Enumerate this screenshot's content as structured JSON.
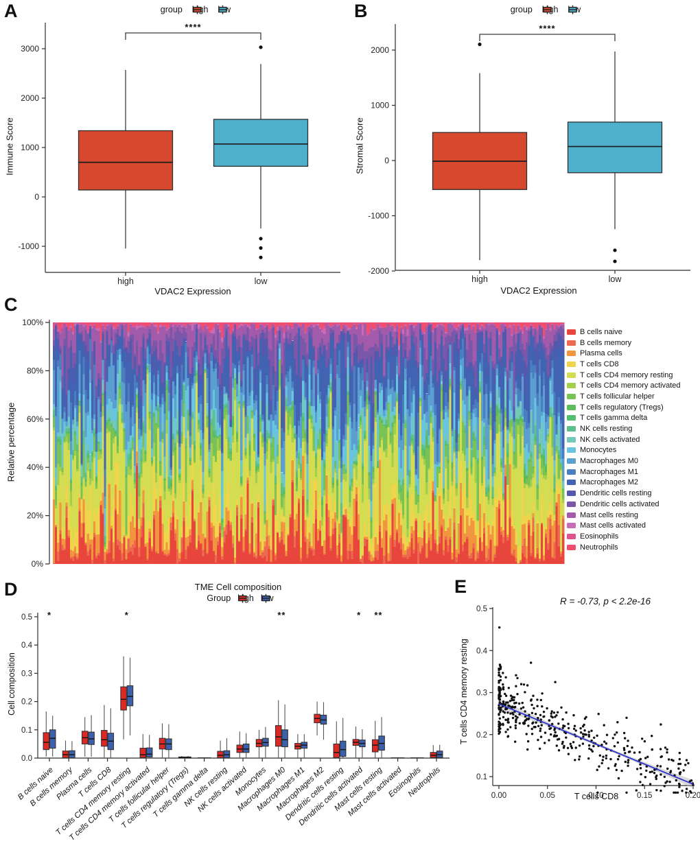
{
  "figure": {
    "background": "#FFFFFF"
  },
  "chart_data": [
    {
      "panel_label": "A",
      "type": "boxplot",
      "legend": {
        "title": "group",
        "items": [
          {
            "label": "high",
            "color": "#D7492F"
          },
          {
            "label": "low",
            "color": "#4FB0CC"
          }
        ]
      },
      "significance": "****",
      "ylabel": "Immune Score",
      "xlabel": "VDAC2 Expression",
      "categories": [
        "high",
        "low"
      ],
      "yticks": [
        {
          "v": -1000,
          "label": "-1000"
        },
        {
          "v": 0,
          "label": "0"
        },
        {
          "v": 1000,
          "label": "1000"
        },
        {
          "v": 2000,
          "label": "2000"
        },
        {
          "v": 3000,
          "label": "3000"
        }
      ],
      "ylim": [
        -1530,
        3530
      ],
      "boxes": [
        {
          "group": "high",
          "color": "#D7492F",
          "min": -1045,
          "q1": 140,
          "median": 700,
          "q3": 1340,
          "max": 2570,
          "outliers": []
        },
        {
          "group": "low",
          "color": "#4FB0CC",
          "min": -640,
          "q1": 620,
          "median": 1070,
          "q3": 1570,
          "max": 2690,
          "outliers": [
            3030,
            -845,
            -1035,
            -1225
          ]
        }
      ]
    },
    {
      "panel_label": "B",
      "type": "boxplot",
      "legend": {
        "title": "group",
        "items": [
          {
            "label": "high",
            "color": "#D7492F"
          },
          {
            "label": "low",
            "color": "#4FB0CC"
          }
        ]
      },
      "significance": "****",
      "ylabel": "Stromal Score",
      "xlabel": "VDAC2 Expression",
      "categories": [
        "high",
        "low"
      ],
      "yticks": [
        {
          "v": -2000,
          "label": "-2000"
        },
        {
          "v": -1000,
          "label": "-1000"
        },
        {
          "v": 0,
          "label": "0"
        },
        {
          "v": 1000,
          "label": "1000"
        },
        {
          "v": 2000,
          "label": "2000"
        }
      ],
      "ylim": [
        -2050,
        2500
      ],
      "boxes": [
        {
          "group": "high",
          "color": "#D7492F",
          "min": -1804,
          "q1": -525,
          "median": -12,
          "q3": 508,
          "max": 1583,
          "outliers": [
            2104
          ]
        },
        {
          "group": "low",
          "color": "#4FB0CC",
          "min": -1242,
          "q1": -221,
          "median": 254,
          "q3": 696,
          "max": 1975,
          "outliers": [
            -1625,
            -1825
          ]
        }
      ]
    },
    {
      "panel_label": "C",
      "type": "stacked-bar",
      "ylabel": "Relative percentage",
      "yticks": [
        "0%",
        "20%",
        "40%",
        "60%",
        "80%",
        "100%"
      ],
      "n_samples": 240,
      "seed": 7,
      "series": [
        {
          "name": "B cells naive",
          "color": "#E8453C",
          "mean_fraction": 0.085
        },
        {
          "name": "B cells memory",
          "color": "#ED6A50",
          "mean_fraction": 0.018
        },
        {
          "name": "Plasma cells",
          "color": "#F2953F",
          "mean_fraction": 0.055
        },
        {
          "name": "T cells CD8",
          "color": "#F0D44C",
          "mean_fraction": 0.06
        },
        {
          "name": "T cells CD4 memory resting",
          "color": "#D4DC52",
          "mean_fraction": 0.2
        },
        {
          "name": "T cells CD4 memory activated",
          "color": "#A2CF4E",
          "mean_fraction": 0.02
        },
        {
          "name": "T cells follicular helper",
          "color": "#79C356",
          "mean_fraction": 0.05
        },
        {
          "name": "T cells regulatory (Tregs)",
          "color": "#5CBC5C",
          "mean_fraction": 0.006
        },
        {
          "name": "T cells gamma delta",
          "color": "#55BD70",
          "mean_fraction": 0.004
        },
        {
          "name": "NK cells resting",
          "color": "#5DBF8D",
          "mean_fraction": 0.015
        },
        {
          "name": "NK cells activated",
          "color": "#72C9B8",
          "mean_fraction": 0.032
        },
        {
          "name": "Monocytes",
          "color": "#69C4DF",
          "mean_fraction": 0.05
        },
        {
          "name": "Macrophages M0",
          "color": "#5B9FD1",
          "mean_fraction": 0.075
        },
        {
          "name": "Macrophages M1",
          "color": "#4B7EC0",
          "mean_fraction": 0.045
        },
        {
          "name": "Macrophages M2",
          "color": "#4163B1",
          "mean_fraction": 0.135
        },
        {
          "name": "Dendritic cells resting",
          "color": "#5559AE",
          "mean_fraction": 0.03
        },
        {
          "name": "Dendritic cells activated",
          "color": "#7A57A9",
          "mean_fraction": 0.05
        },
        {
          "name": "Mast cells resting",
          "color": "#A25BAB",
          "mean_fraction": 0.05
        },
        {
          "name": "Mast cells activated",
          "color": "#C76DB5",
          "mean_fraction": 0.004
        },
        {
          "name": "Eosinophils",
          "color": "#E0528F",
          "mean_fraction": 0.004
        },
        {
          "name": "Neutrophils",
          "color": "#F04E6F",
          "mean_fraction": 0.012
        }
      ]
    },
    {
      "panel_label": "D",
      "type": "grouped-boxplot",
      "title": "TME Cell composition",
      "legend": {
        "title": "Group",
        "items": [
          {
            "label": "high",
            "color": "#DE2823"
          },
          {
            "label": "low",
            "color": "#3C60AC"
          }
        ]
      },
      "ylabel": "Cell composition",
      "yticks": [
        {
          "v": 0,
          "label": "0.0"
        },
        {
          "v": 0.1,
          "label": "0.1"
        },
        {
          "v": 0.2,
          "label": "0.2"
        },
        {
          "v": 0.3,
          "label": "0.3"
        },
        {
          "v": 0.4,
          "label": "0.4"
        },
        {
          "v": 0.5,
          "label": "0.5"
        }
      ],
      "categories": [
        "B cells naive",
        "B cells memory",
        "Plasma cells",
        "T cells CD8",
        "T cells CD4 memory resting",
        "T cells CD4 memory activated",
        "T cells follicular helper",
        "T cells regulatory (Tregs)",
        "T cells gamma delta",
        "NK cells resting",
        "NK cells activated",
        "Monocytes",
        "Macrophages M0",
        "Macrophages M1",
        "Macrophages M2",
        "Dendritic cells resting",
        "Dendritic cells activated",
        "Mast cells resting",
        "Mast cells activated",
        "Eosinophils",
        "Neutrophils"
      ],
      "significance": [
        {
          "index": 0,
          "label": "*"
        },
        {
          "index": 4,
          "label": "*"
        },
        {
          "index": 12,
          "label": "**"
        },
        {
          "index": 16,
          "label": "*"
        },
        {
          "index": 17,
          "label": "**"
        }
      ],
      "series": [
        {
          "name": "high",
          "color": "#DE2823",
          "boxes": [
            {
              "min": 0.005,
              "q1": 0.03,
              "median": 0.056,
              "q3": 0.09,
              "max": 0.165
            },
            {
              "min": 0,
              "q1": 0.001,
              "median": 0.012,
              "q3": 0.025,
              "max": 0.062
            },
            {
              "min": 0.005,
              "q1": 0.05,
              "median": 0.072,
              "q3": 0.095,
              "max": 0.145
            },
            {
              "min": 0,
              "q1": 0.042,
              "median": 0.065,
              "q3": 0.098,
              "max": 0.188
            },
            {
              "min": 0.066,
              "q1": 0.17,
              "median": 0.208,
              "q3": 0.252,
              "max": 0.36
            },
            {
              "min": 0,
              "q1": 0.002,
              "median": 0.012,
              "q3": 0.035,
              "max": 0.085
            },
            {
              "min": 0,
              "q1": 0.032,
              "median": 0.05,
              "q3": 0.07,
              "max": 0.123
            },
            {
              "min": 0,
              "q1": 0,
              "median": 0.002,
              "q3": 0.004,
              "max": 0.007
            },
            {
              "min": 0,
              "q1": 0,
              "median": 0.001,
              "q3": 0.002,
              "max": 0.002
            },
            {
              "min": 0,
              "q1": 0.001,
              "median": 0.01,
              "q3": 0.024,
              "max": 0.062
            },
            {
              "min": 0,
              "q1": 0.02,
              "median": 0.032,
              "q3": 0.046,
              "max": 0.094
            },
            {
              "min": 0,
              "q1": 0.04,
              "median": 0.052,
              "q3": 0.066,
              "max": 0.1
            },
            {
              "min": 0,
              "q1": 0.042,
              "median": 0.075,
              "q3": 0.115,
              "max": 0.205
            },
            {
              "min": 0,
              "q1": 0.032,
              "median": 0.042,
              "q3": 0.052,
              "max": 0.085
            },
            {
              "min": 0.08,
              "q1": 0.125,
              "median": 0.14,
              "q3": 0.155,
              "max": 0.2
            },
            {
              "min": 0,
              "q1": 0.002,
              "median": 0.02,
              "q3": 0.05,
              "max": 0.13
            },
            {
              "min": 0,
              "q1": 0.045,
              "median": 0.056,
              "q3": 0.066,
              "max": 0.112
            },
            {
              "min": 0,
              "q1": 0.022,
              "median": 0.046,
              "q3": 0.065,
              "max": 0.132
            },
            {
              "min": 0,
              "q1": 0,
              "median": 0.001,
              "q3": 0.002,
              "max": 0.002
            },
            {
              "min": 0,
              "q1": 0,
              "median": 0.001,
              "q3": 0.002,
              "max": 0.002
            },
            {
              "min": 0,
              "q1": 0.002,
              "median": 0.01,
              "q3": 0.02,
              "max": 0.046
            }
          ]
        },
        {
          "name": "low",
          "color": "#3C60AC",
          "boxes": [
            {
              "min": 0.005,
              "q1": 0.035,
              "median": 0.07,
              "q3": 0.1,
              "max": 0.15
            },
            {
              "min": 0,
              "q1": 0.001,
              "median": 0.012,
              "q3": 0.026,
              "max": 0.06
            },
            {
              "min": 0.005,
              "q1": 0.048,
              "median": 0.068,
              "q3": 0.092,
              "max": 0.152
            },
            {
              "min": 0,
              "q1": 0.03,
              "median": 0.06,
              "q3": 0.088,
              "max": 0.176
            },
            {
              "min": 0.08,
              "q1": 0.185,
              "median": 0.218,
              "q3": 0.256,
              "max": 0.355
            },
            {
              "min": 0,
              "q1": 0.004,
              "median": 0.014,
              "q3": 0.036,
              "max": 0.082
            },
            {
              "min": 0,
              "q1": 0.03,
              "median": 0.05,
              "q3": 0.068,
              "max": 0.12
            },
            {
              "min": 0,
              "q1": 0,
              "median": 0.002,
              "q3": 0.004,
              "max": 0.007
            },
            {
              "min": 0,
              "q1": 0,
              "median": 0.001,
              "q3": 0.002,
              "max": 0.002
            },
            {
              "min": 0,
              "q1": 0.001,
              "median": 0.012,
              "q3": 0.026,
              "max": 0.07
            },
            {
              "min": 0,
              "q1": 0.02,
              "median": 0.032,
              "q3": 0.05,
              "max": 0.088
            },
            {
              "min": 0,
              "q1": 0.042,
              "median": 0.055,
              "q3": 0.07,
              "max": 0.11
            },
            {
              "min": 0,
              "q1": 0.04,
              "median": 0.065,
              "q3": 0.1,
              "max": 0.19
            },
            {
              "min": 0,
              "q1": 0.035,
              "median": 0.046,
              "q3": 0.056,
              "max": 0.085
            },
            {
              "min": 0.065,
              "q1": 0.12,
              "median": 0.135,
              "q3": 0.152,
              "max": 0.198
            },
            {
              "min": 0,
              "q1": 0.006,
              "median": 0.03,
              "q3": 0.06,
              "max": 0.142
            },
            {
              "min": 0,
              "q1": 0.04,
              "median": 0.052,
              "q3": 0.064,
              "max": 0.102
            },
            {
              "min": 0,
              "q1": 0.028,
              "median": 0.052,
              "q3": 0.078,
              "max": 0.145
            },
            {
              "min": 0,
              "q1": 0,
              "median": 0.001,
              "q3": 0.002,
              "max": 0.002
            },
            {
              "min": 0,
              "q1": 0,
              "median": 0.001,
              "q3": 0.002,
              "max": 0.002
            },
            {
              "min": 0,
              "q1": 0.002,
              "median": 0.012,
              "q3": 0.025,
              "max": 0.047
            }
          ]
        }
      ]
    },
    {
      "panel_label": "E",
      "type": "scatter",
      "annotation": "R = -0.73, p < 2.2e-16",
      "xlabel": "T cells CD8",
      "ylabel": "T cells CD4 memory resting",
      "xticks": [
        {
          "v": 0,
          "label": "0.00"
        },
        {
          "v": 0.05,
          "label": "0.05"
        },
        {
          "v": 0.1,
          "label": "0.10"
        },
        {
          "v": 0.15,
          "label": "0.15"
        },
        {
          "v": 0.2,
          "label": "0.20"
        }
      ],
      "yticks": [
        {
          "v": 0.1,
          "label": "0.1"
        },
        {
          "v": 0.2,
          "label": "0.2"
        },
        {
          "v": 0.3,
          "label": "0.3"
        },
        {
          "v": 0.4,
          "label": "0.4"
        },
        {
          "v": 0.5,
          "label": "0.5"
        }
      ],
      "regression": {
        "x1": 0,
        "y1": 0.273,
        "x2": 0.2,
        "y2": 0.082,
        "color": "#2F35C8"
      },
      "point_color": "#101010",
      "band_color": "#AAAAAA",
      "points": {
        "seed": 11,
        "n_zero": 66,
        "n_cloud": 358,
        "intercept": 0.272,
        "slope": -0.95,
        "noise_sd": 0.032,
        "extra": [
          [
            0.0005,
            0.455
          ],
          [
            0.033,
            0.371
          ],
          [
            0.058,
            0.325
          ],
          [
            0.197,
            0.065
          ],
          [
            0.185,
            0.13
          ],
          [
            0.192,
            0.128
          ]
        ]
      }
    }
  ]
}
